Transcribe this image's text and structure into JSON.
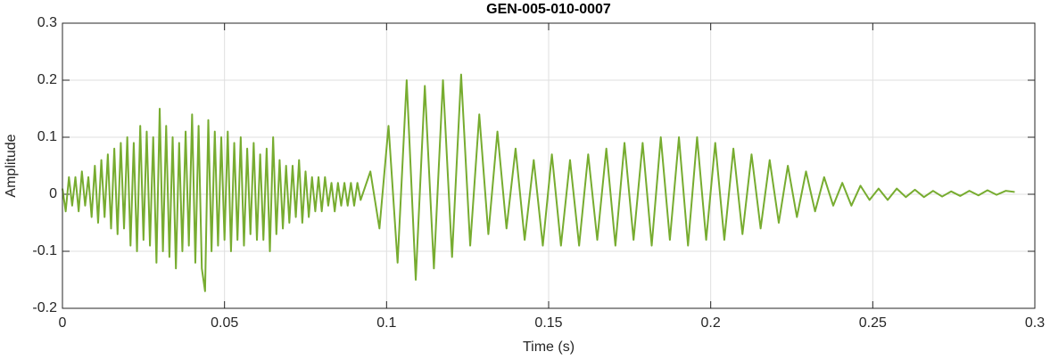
{
  "chart_data": {
    "type": "line",
    "title": "GEN-005-010-0007",
    "xlabel": "Time (s)",
    "ylabel": "Amplitude",
    "x": [
      0,
      0.001,
      0.002,
      0.003,
      0.004,
      0.005,
      0.006,
      0.007,
      0.008,
      0.009,
      0.01,
      0.011,
      0.012,
      0.013,
      0.014,
      0.015,
      0.016,
      0.017,
      0.018,
      0.019,
      0.02,
      0.021,
      0.022,
      0.023,
      0.024,
      0.025,
      0.026,
      0.027,
      0.028,
      0.029,
      0.03,
      0.031,
      0.032,
      0.033,
      0.034,
      0.035,
      0.036,
      0.037,
      0.038,
      0.039,
      0.04,
      0.041,
      0.042,
      0.043,
      0.044,
      0.045,
      0.046,
      0.047,
      0.048,
      0.049,
      0.05,
      0.051,
      0.052,
      0.053,
      0.054,
      0.055,
      0.056,
      0.057,
      0.058,
      0.059,
      0.06,
      0.061,
      0.062,
      0.063,
      0.064,
      0.065,
      0.066,
      0.067,
      0.068,
      0.069,
      0.07,
      0.071,
      0.072,
      0.073,
      0.074,
      0.075,
      0.076,
      0.077,
      0.078,
      0.079,
      0.08,
      0.081,
      0.082,
      0.083,
      0.084,
      0.085,
      0.086,
      0.087,
      0.088,
      0.089,
      0.09,
      0.091,
      0.092,
      0.095,
      0.0978,
      0.1006,
      0.1034,
      0.1062,
      0.109,
      0.1118,
      0.1146,
      0.1174,
      0.1202,
      0.123,
      0.1258,
      0.1286,
      0.1314,
      0.1342,
      0.137,
      0.1398,
      0.1426,
      0.1454,
      0.1482,
      0.151,
      0.1538,
      0.1566,
      0.1594,
      0.1622,
      0.165,
      0.1678,
      0.1706,
      0.1734,
      0.1762,
      0.179,
      0.1818,
      0.1846,
      0.1874,
      0.1902,
      0.193,
      0.1958,
      0.1986,
      0.2014,
      0.2042,
      0.207,
      0.2098,
      0.2126,
      0.2154,
      0.2182,
      0.221,
      0.2238,
      0.2266,
      0.2294,
      0.2322,
      0.235,
      0.2378,
      0.2406,
      0.2434,
      0.2462,
      0.249,
      0.2518,
      0.2546,
      0.2574,
      0.2602,
      0.263,
      0.2658,
      0.2686,
      0.2714,
      0.2742,
      0.277,
      0.2798,
      0.2826,
      0.2854,
      0.2882,
      0.291,
      0.2938
    ],
    "series": [
      {
        "color": "#77ac30",
        "values": [
          0.01,
          -0.03,
          0.03,
          -0.02,
          0.03,
          -0.03,
          0.04,
          -0.02,
          0.03,
          -0.04,
          0.05,
          -0.05,
          0.06,
          -0.04,
          0.07,
          -0.06,
          0.08,
          -0.07,
          0.09,
          -0.06,
          0.1,
          -0.09,
          0.09,
          -0.1,
          0.12,
          -0.08,
          0.11,
          -0.09,
          0.1,
          -0.12,
          0.15,
          -0.1,
          0.12,
          -0.11,
          0.1,
          -0.13,
          0.09,
          -0.1,
          0.11,
          -0.09,
          0.14,
          -0.12,
          0.12,
          -0.13,
          -0.17,
          0.13,
          -0.1,
          0.11,
          -0.09,
          0.1,
          -0.08,
          0.11,
          -0.1,
          0.09,
          -0.08,
          0.1,
          -0.09,
          0.08,
          -0.07,
          0.09,
          -0.08,
          0.07,
          -0.08,
          0.08,
          -0.1,
          0.1,
          -0.07,
          0.06,
          -0.06,
          0.05,
          -0.05,
          0.05,
          -0.04,
          0.06,
          -0.05,
          0.04,
          -0.04,
          0.03,
          -0.03,
          0.03,
          -0.03,
          0.03,
          -0.02,
          0.02,
          -0.03,
          0.02,
          -0.02,
          0.02,
          -0.02,
          0.02,
          -0.02,
          0.02,
          -0.01,
          0.04,
          -0.06,
          0.12,
          -0.12,
          0.2,
          -0.15,
          0.19,
          -0.13,
          0.2,
          -0.11,
          0.21,
          -0.09,
          0.14,
          -0.07,
          0.11,
          -0.06,
          0.08,
          -0.08,
          0.06,
          -0.09,
          0.07,
          -0.09,
          0.06,
          -0.09,
          0.07,
          -0.08,
          0.08,
          -0.09,
          0.09,
          -0.08,
          0.09,
          -0.09,
          0.1,
          -0.08,
          0.1,
          -0.09,
          0.1,
          -0.08,
          0.09,
          -0.08,
          0.08,
          -0.07,
          0.07,
          -0.06,
          0.06,
          -0.05,
          0.05,
          -0.04,
          0.04,
          -0.03,
          0.03,
          -0.02,
          0.02,
          -0.02,
          0.015,
          -0.01,
          0.01,
          -0.01,
          0.01,
          -0.005,
          0.008,
          -0.005,
          0.006,
          -0.004,
          0.005,
          -0.003,
          0.006,
          -0.002,
          0.007,
          -0.001,
          0.006,
          0.004
        ]
      }
    ],
    "xlim": [
      0,
      0.3
    ],
    "xticks": [
      0,
      0.05,
      0.1,
      0.15,
      0.2,
      0.25,
      0.3
    ],
    "ylim": [
      -0.2,
      0.3
    ],
    "yticks": [
      -0.2,
      -0.1,
      0,
      0.1,
      0.2,
      0.3
    ],
    "grid": true
  }
}
